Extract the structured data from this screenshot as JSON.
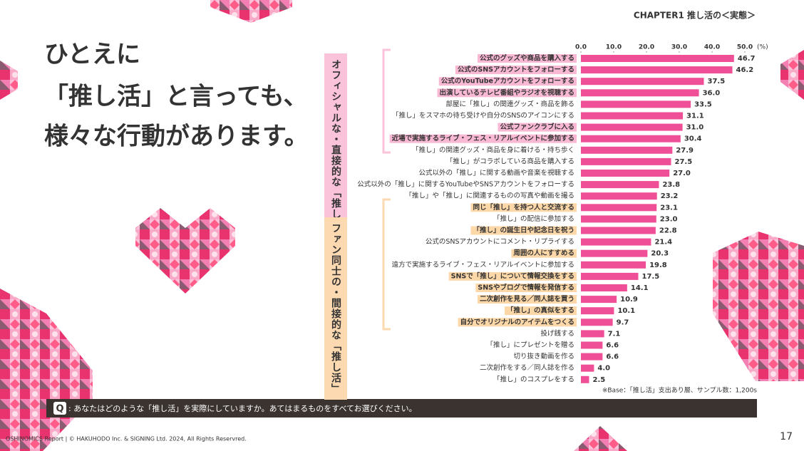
{
  "header": "CHAPTER1 推し活の＜実態＞",
  "headline": [
    "ひとえに",
    "「推し活」と言っても、",
    "様々な行動があります。"
  ],
  "groups": [
    {
      "lines": [
        "オフィシャルな・",
        "直接的な「推し活」"
      ],
      "color": "#fbc3da"
    },
    {
      "lines": [
        "ファン同士の・",
        "間接的な「推し活」"
      ],
      "color": "#fcd9b0"
    }
  ],
  "chart_data": {
    "type": "hbar",
    "unit": "(%)",
    "categories": [
      "公式のグッズや商品を購入する",
      "公式のSNSアカウントをフォローする",
      "公式のYouTubeアカウントをフォローする",
      "出演しているテレビ番組やラジオを視聴する",
      "部屋に「推し」の関連グッズ・商品を飾る",
      "「推し」をスマホの待ち受けや自分のSNSのアイコンにする",
      "公式ファンクラブに入る",
      "近場で実施するライブ・フェス・リアルイベントに参加する",
      "「推し」の関連グッズ・商品を身に着ける・持ち歩く",
      "「推し」がコラボしている商品を購入する",
      "公式以外の「推し」に関する動画や音楽を視聴する",
      "公式以外の「推し」に関するYouTubeやSNSアカウントをフォローする",
      "「推し」や「推し」に関連するものの写真や動画を撮る",
      "同じ「推し」を持つ人と交流する",
      "「推し」の配信に参加する",
      "「推し」の誕生日や記念日を祝う",
      "公式のSNSアカウントにコメント・リプライする",
      "周囲の人にすすめる",
      "遠方で実施するライブ・フェス・リアルイベントに参加する",
      "SNSで「推し」について情報交換をする",
      "SNSやブログで情報を発信する",
      "二次創作を見る／同人誌を買う",
      "「推し」の真似をする",
      "自分でオリジナルのアイテムをつくる",
      "投げ銭する",
      "「推し」にプレゼントを贈る",
      "切り抜き動画を作る",
      "二次創作をする／同人誌を作る",
      "「推し」のコスプレをする"
    ],
    "values": [
      46.7,
      46.2,
      37.5,
      36.0,
      33.5,
      31.1,
      31.0,
      30.4,
      27.9,
      27.5,
      27.0,
      23.8,
      23.2,
      23.1,
      23.0,
      22.8,
      21.4,
      20.3,
      19.8,
      17.5,
      14.1,
      10.9,
      10.1,
      9.7,
      7.1,
      6.6,
      6.6,
      4.0,
      2.5
    ],
    "value_labels": [
      "46.7",
      "46.2",
      "37.5",
      "36.0",
      "33.5",
      "31.1",
      "31.0",
      "30.4",
      "27.9",
      "27.5",
      "27.0",
      "23.8",
      "23.2",
      "23.1",
      "23.0",
      "22.8",
      "21.4",
      "20.3",
      "19.8",
      "17.5",
      "14.1",
      "10.9",
      "10.1",
      "9.7",
      "7.1",
      "6.6",
      "6.6",
      "4.0",
      "2.5"
    ],
    "label_colors": [
      "#f9b8d3",
      "#f9b8d3",
      "#f9b8d3",
      "#f9b8d3",
      null,
      null,
      "#f9b8d3",
      "#f9b8d3",
      null,
      null,
      null,
      null,
      null,
      "#fcd7a8",
      null,
      "#fcd7a8",
      null,
      "#fcd7a8",
      null,
      "#fcd7a8",
      "#fcd7a8",
      "#fcd7a8",
      "#fcd7a8",
      "#fcd7a8",
      null,
      null,
      null,
      null,
      null
    ],
    "color": "#ef4f96",
    "xlim": [
      0,
      50
    ],
    "xticks": [
      {
        "value": 0,
        "label": "0.0"
      },
      {
        "value": 10,
        "label": "10.0"
      },
      {
        "value": 20,
        "label": "20.0"
      },
      {
        "value": 30,
        "label": "30.0"
      },
      {
        "value": 40,
        "label": "40.0"
      },
      {
        "value": 50,
        "label": "50.0"
      }
    ],
    "grid": false,
    "note": "※Base：「推し活」支出あり層、サンプル数：1,200s"
  },
  "question": {
    "badge": "Q",
    "text": ": あなたはどのような「推し活」を実際にしていますか。あてはまるものをすべてお選びください。"
  },
  "footer": {
    "credit": "OSHINOMICS Report | © HAKUHODO Inc. & SIGNING Ltd. 2024, All Rights Reservred.",
    "page": "17"
  }
}
